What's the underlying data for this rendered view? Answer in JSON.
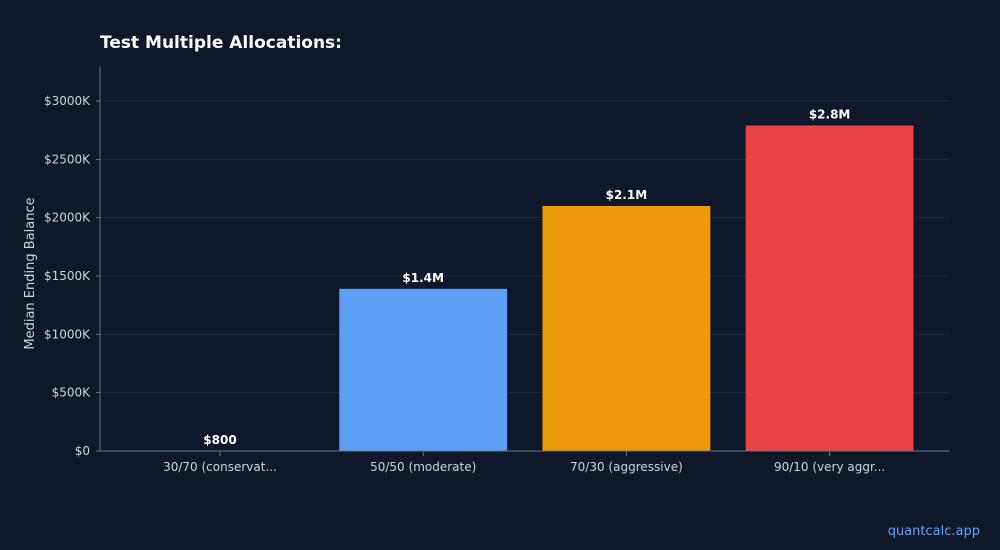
{
  "chart_data": {
    "type": "bar",
    "title": "Test Multiple Allocations:",
    "xlabel": "",
    "ylabel": "Median Ending Balance",
    "categories": [
      "30/70 (conservat...",
      "50/50 (moderate)",
      "70/30 (aggressive)",
      "90/10 (very aggr..."
    ],
    "values": [
      800,
      1390000,
      2100000,
      2790000
    ],
    "data_labels": [
      "$800",
      "$1.4M",
      "$2.1M",
      "$2.8M"
    ],
    "colors": [
      "#60a5fa",
      "#60a5fa",
      "#f59e0b",
      "#ef4444"
    ],
    "ylim": [
      0,
      3300000
    ],
    "yticks": [
      0,
      500000,
      1000000,
      1500000,
      2000000,
      2500000,
      3000000
    ],
    "ytick_labels": [
      "$0",
      "$500K",
      "$1000K",
      "$1500K",
      "$2000K",
      "$2500K",
      "$3000K"
    ],
    "grid": true,
    "legend": "none"
  },
  "watermark": "quantcalc.app"
}
